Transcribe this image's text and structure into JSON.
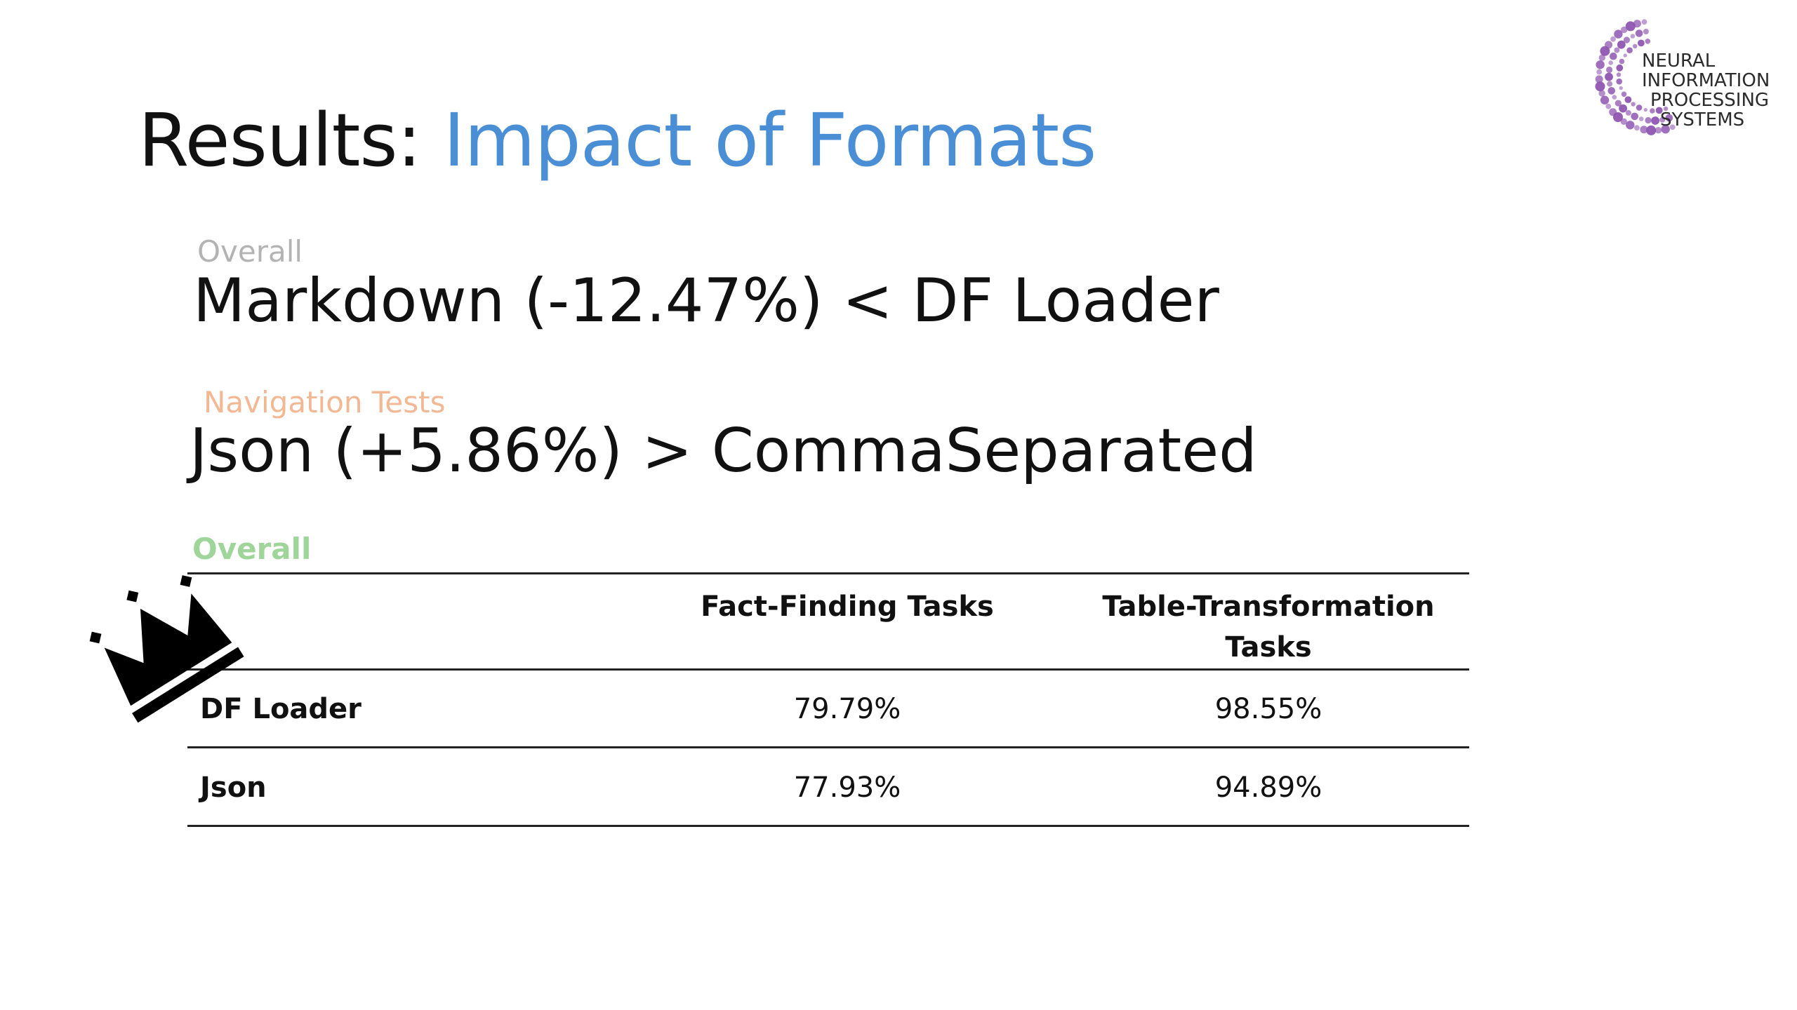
{
  "title": {
    "prefix": "Results:",
    "accent": "Impact of Formats",
    "accent_color": "#4a8ed6"
  },
  "logo": {
    "lines": [
      "NEURAL",
      "INFORMATION",
      "PROCESSING",
      "SYSTEMS"
    ],
    "color": "#8a4fae"
  },
  "overall_stat": {
    "label": "Overall",
    "text": "Markdown (-12.47%) < DF Loader"
  },
  "navigation_stat": {
    "label": "Navigation Tests",
    "text": "Json (+5.86%) > CommaSeparated"
  },
  "table": {
    "caption": "Overall",
    "headers": {
      "fact": "Fact-Finding Tasks",
      "transform_line1": "Table-Transformation",
      "transform_line2": "Tasks"
    },
    "rows": [
      {
        "name": "DF Loader",
        "fact": "79.79%",
        "transform": "98.55%"
      },
      {
        "name": "Json",
        "fact": "77.93%",
        "transform": "94.89%"
      }
    ]
  },
  "icons": {
    "winner": "crown-icon"
  }
}
